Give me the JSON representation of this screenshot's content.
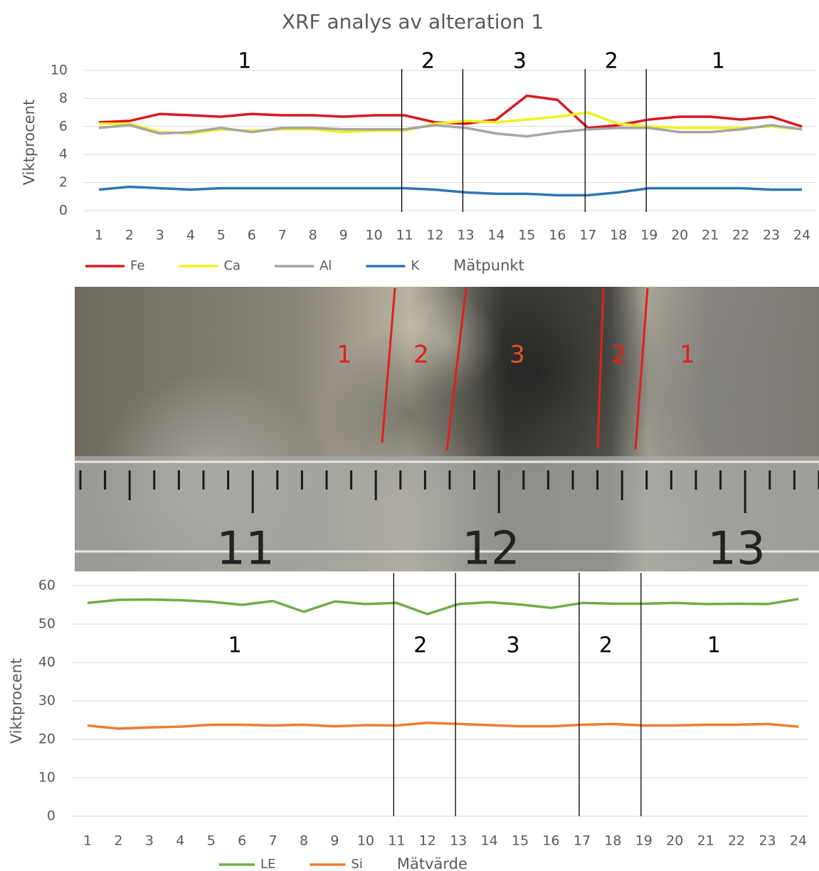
{
  "chart_data": [
    {
      "type": "line",
      "title": "XRF analys av alteration 1",
      "y_label": "Viktprocent",
      "x_label": "Mätpunkt",
      "categories": [
        "1",
        "2",
        "3",
        "4",
        "5",
        "6",
        "7",
        "8",
        "9",
        "10",
        "11",
        "12",
        "13",
        "14",
        "15",
        "16",
        "17",
        "18",
        "19",
        "20",
        "21",
        "22",
        "23",
        "24"
      ],
      "series": [
        {
          "name": "Fe",
          "color": "#d9181f",
          "values": [
            6.3,
            6.4,
            6.9,
            6.8,
            6.7,
            6.9,
            6.8,
            6.8,
            6.7,
            6.8,
            6.8,
            6.3,
            6.2,
            6.5,
            8.2,
            7.9,
            5.9,
            6.1,
            6.5,
            6.7,
            6.7,
            6.5,
            6.7,
            6.0
          ]
        },
        {
          "name": "Ca",
          "color": "#f2f21a",
          "values": [
            6.2,
            6.2,
            5.6,
            5.5,
            5.8,
            5.7,
            5.8,
            5.8,
            5.6,
            5.7,
            5.7,
            6.2,
            6.4,
            6.3,
            6.5,
            6.7,
            7.0,
            6.2,
            6.0,
            5.9,
            5.9,
            5.9,
            6.0,
            5.8
          ]
        },
        {
          "name": "Al",
          "color": "#a5a5a5",
          "values": [
            5.9,
            6.1,
            5.5,
            5.6,
            5.9,
            5.6,
            5.9,
            5.9,
            5.8,
            5.8,
            5.8,
            6.1,
            5.9,
            5.5,
            5.3,
            5.6,
            5.8,
            5.9,
            5.9,
            5.6,
            5.6,
            5.8,
            6.1,
            5.8
          ]
        },
        {
          "name": "K",
          "color": "#2e75b6",
          "values": [
            1.5,
            1.7,
            1.6,
            1.5,
            1.6,
            1.6,
            1.6,
            1.6,
            1.6,
            1.6,
            1.6,
            1.5,
            1.3,
            1.2,
            1.2,
            1.1,
            1.1,
            1.3,
            1.6,
            1.6,
            1.6,
            1.6,
            1.5,
            1.5
          ]
        }
      ],
      "ylim": [
        0,
        10
      ],
      "yticks": [
        0,
        2,
        4,
        6,
        8,
        10
      ],
      "grid": true,
      "legend": "bottom",
      "dividers": [
        11,
        13,
        17,
        19
      ],
      "zones": [
        "1",
        "2",
        "3",
        "2",
        "1"
      ]
    },
    {
      "type": "line",
      "y_label": "Viktprocent",
      "x_label": "Mätvärde",
      "categories": [
        "1",
        "2",
        "3",
        "4",
        "5",
        "6",
        "7",
        "8",
        "9",
        "10",
        "11",
        "12",
        "13",
        "14",
        "15",
        "16",
        "17",
        "18",
        "19",
        "20",
        "21",
        "22",
        "23",
        "24"
      ],
      "series": [
        {
          "name": "LE",
          "color": "#70ad47",
          "values": [
            55.5,
            56.3,
            56.4,
            56.2,
            55.8,
            55.0,
            56.0,
            53.2,
            55.9,
            55.2,
            55.5,
            52.6,
            55.2,
            55.7,
            55.1,
            54.2,
            55.5,
            55.3,
            55.3,
            55.5,
            55.2,
            55.3,
            55.2,
            56.5
          ]
        },
        {
          "name": "Si",
          "color": "#ed7d31",
          "values": [
            23.6,
            22.8,
            23.1,
            23.3,
            23.8,
            23.8,
            23.6,
            23.8,
            23.4,
            23.7,
            23.6,
            24.3,
            24.0,
            23.7,
            23.4,
            23.4,
            23.8,
            24.0,
            23.6,
            23.6,
            23.8,
            23.8,
            24.0,
            23.3
          ]
        }
      ],
      "ylim": [
        0,
        60
      ],
      "yticks": [
        0,
        10,
        20,
        30,
        40,
        50,
        60
      ],
      "grid": true,
      "legend": "bottom",
      "dividers": [
        11,
        13,
        17,
        19
      ],
      "zones": [
        "1",
        "2",
        "3",
        "2",
        "1"
      ]
    }
  ],
  "photo": {
    "zones": [
      "1",
      "2",
      "3",
      "2",
      "1"
    ],
    "ruler_numbers": [
      "11",
      "12",
      "13"
    ]
  }
}
